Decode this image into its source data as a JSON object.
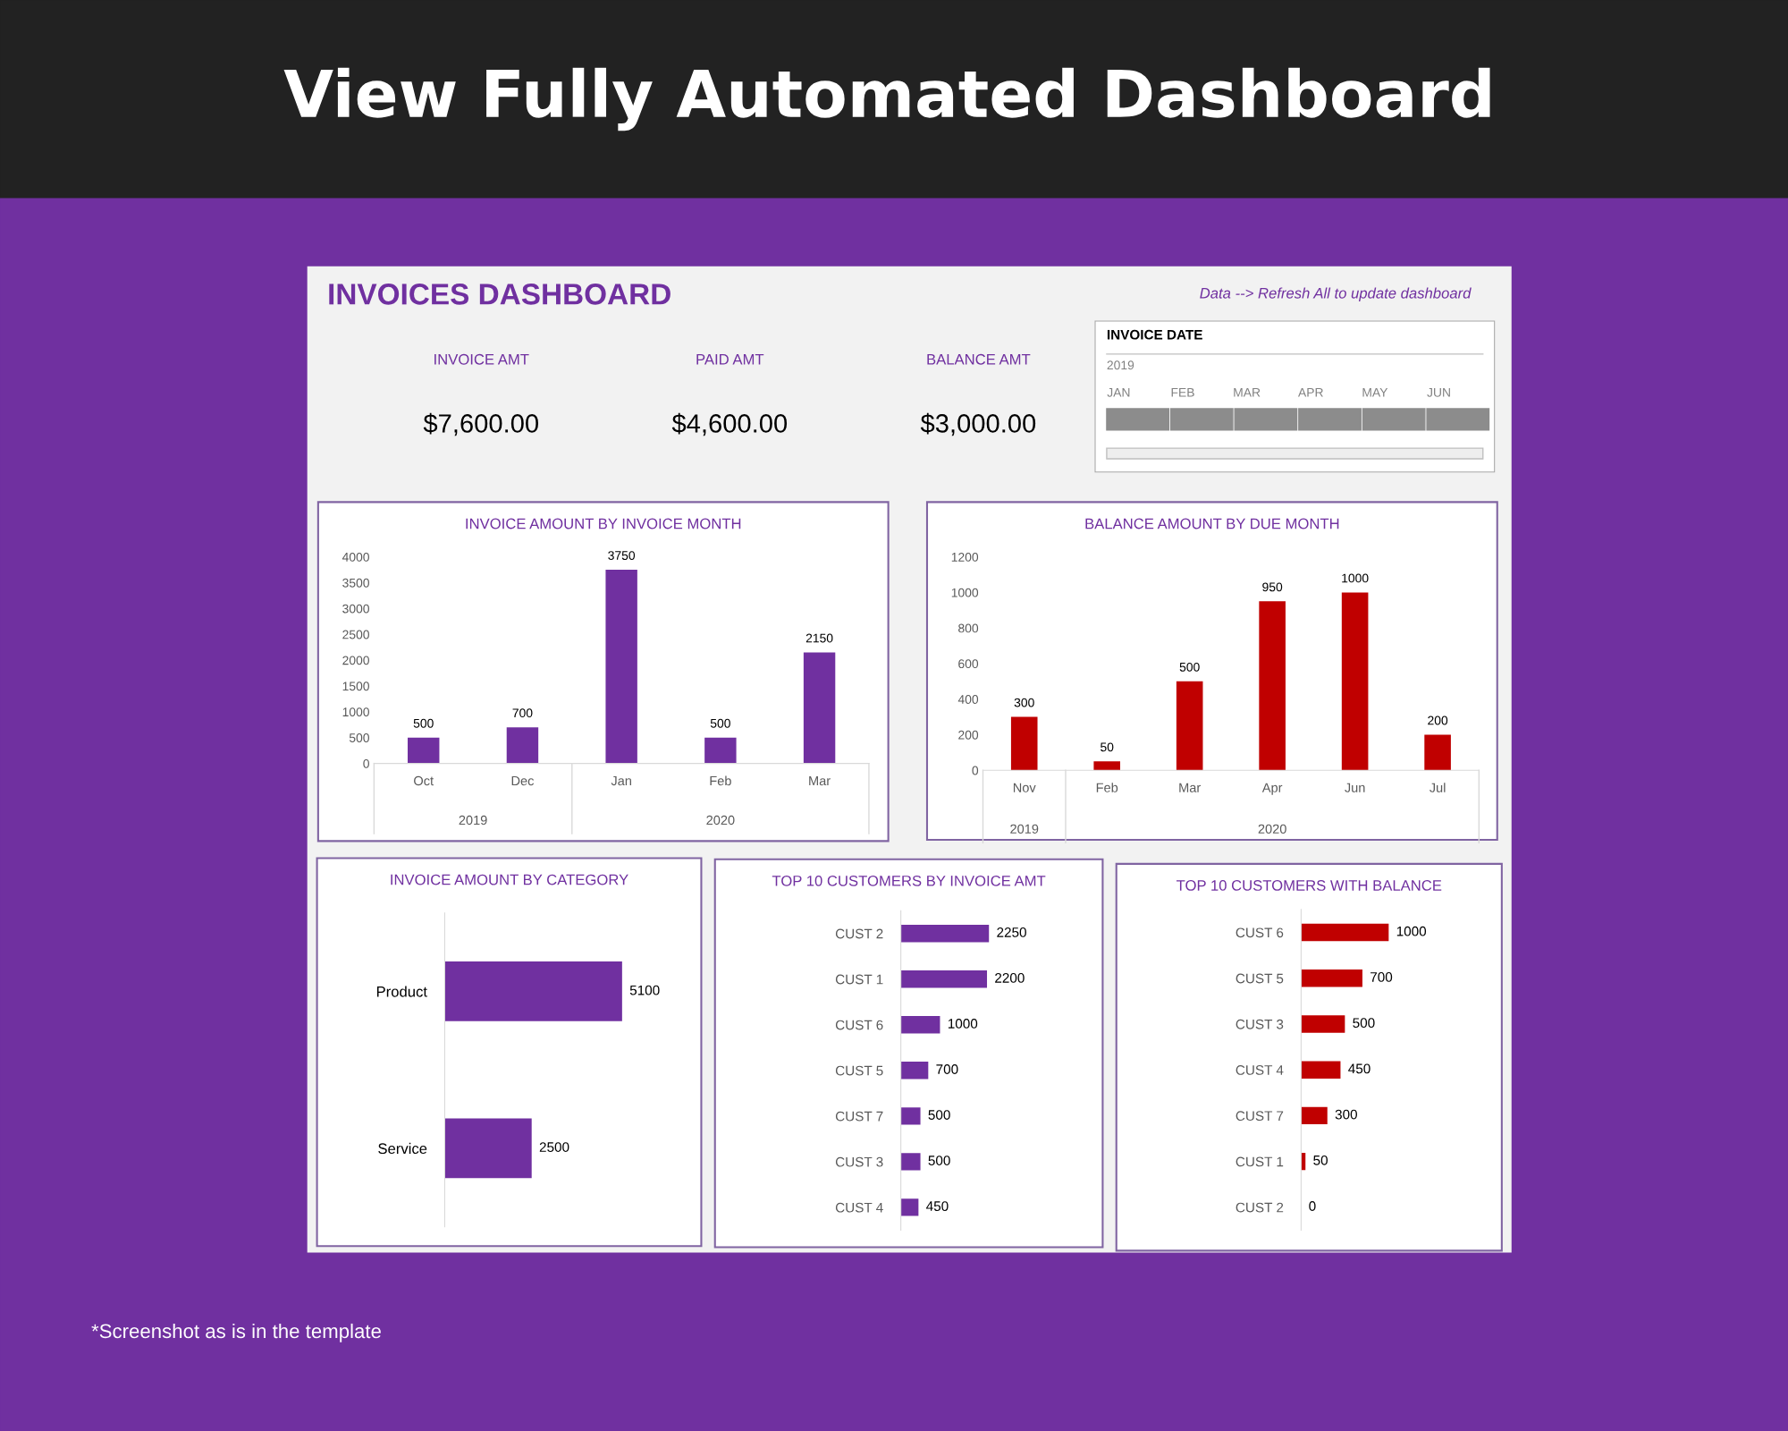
{
  "chart_data": [
    {
      "type": "other",
      "title": "INVOICES DASHBOARD",
      "categories": [
        "INVOICE AMT",
        "PAID AMT",
        "BALANCE AMT"
      ],
      "value_labels": [
        "$7,600.00",
        "$4,600.00",
        "$3,000.00"
      ],
      "annotations": [
        "View Fully Automated Dashboard",
        "Data --> Refresh All to update dashboard",
        "*Screenshot as is in the template"
      ]
    },
    {
      "type": "other",
      "title": "INVOICE DATE",
      "subtitle": "2019",
      "categories": [
        "JAN",
        "FEB",
        "MAR",
        "APR",
        "MAY",
        "JUN"
      ]
    },
    {
      "type": "bar",
      "title": "INVOICE AMOUNT BY INVOICE MONTH",
      "categories": [
        "Oct",
        "Dec",
        "Jan",
        "Feb",
        "Mar"
      ],
      "series": [
        {
          "color": "#7030a0",
          "values": [
            500,
            700,
            3750,
            500,
            2150
          ]
        }
      ],
      "ylim": [
        0,
        4000
      ],
      "yticks": [
        0,
        500,
        1000,
        1500,
        2000,
        2500,
        3000,
        3500,
        4000
      ],
      "data_labels": true,
      "annotations": [
        "2019",
        "2020"
      ]
    },
    {
      "type": "bar",
      "title": "BALANCE AMOUNT BY DUE MONTH",
      "categories": [
        "Nov",
        "Feb",
        "Mar",
        "Apr",
        "Jun",
        "Jul"
      ],
      "series": [
        {
          "color": "#c00000",
          "values": [
            300,
            50,
            500,
            950,
            1000,
            200
          ]
        }
      ],
      "ylim": [
        0,
        1200
      ],
      "yticks": [
        0,
        200,
        400,
        600,
        800,
        1000,
        1200
      ],
      "data_labels": true,
      "annotations": [
        "2019",
        "2020"
      ]
    },
    {
      "type": "bar",
      "orientation": "horizontal",
      "title": "INVOICE AMOUNT BY CATEGORY",
      "categories": [
        "Product",
        "Service"
      ],
      "series": [
        {
          "color": "#7030a0",
          "values": [
            5100,
            2500
          ]
        }
      ],
      "data_labels": true
    },
    {
      "type": "bar",
      "orientation": "horizontal",
      "title": "TOP 10 CUSTOMERS BY INVOICE AMT",
      "categories": [
        "CUST 2",
        "CUST 1",
        "CUST 6",
        "CUST 5",
        "CUST 7",
        "CUST 3",
        "CUST 4"
      ],
      "series": [
        {
          "color": "#7030a0",
          "values": [
            2250,
            2200,
            1000,
            700,
            500,
            500,
            450
          ]
        }
      ],
      "data_labels": true
    },
    {
      "type": "bar",
      "orientation": "horizontal",
      "title": "TOP 10 CUSTOMERS WITH BALANCE",
      "categories": [
        "CUST 6",
        "CUST 5",
        "CUST 3",
        "CUST 4",
        "CUST 7",
        "CUST 1",
        "CUST 2"
      ],
      "series": [
        {
          "color": "#c00000",
          "values": [
            1000,
            700,
            500,
            450,
            300,
            50,
            0
          ]
        }
      ],
      "data_labels": true
    }
  ]
}
